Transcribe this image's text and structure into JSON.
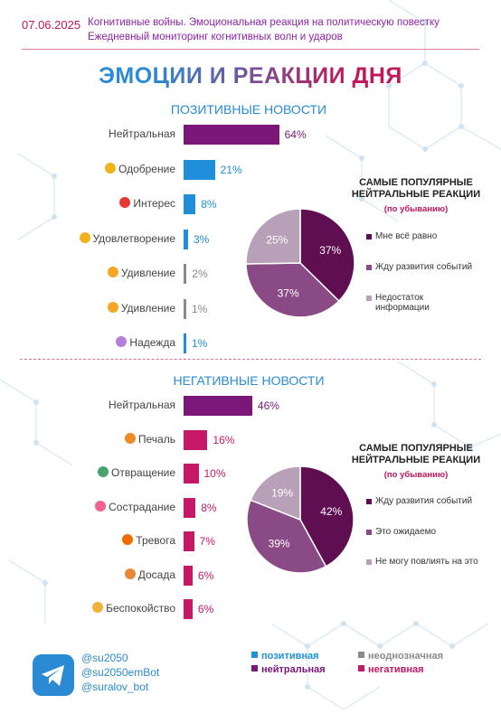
{
  "header": {
    "date": "07.06.2025",
    "line1": "Когнитивные войны. Эмоциональная реакция на политическую повестку",
    "line2": "Ежедневный мониторинг когнитивных волн и ударов"
  },
  "main_title": "ЭМОЦИИ И РЕАКЦИИ ДНЯ",
  "colors": {
    "positive": "#1f8fd9",
    "neutral": "#7b1777",
    "ambiguous": "#8a8a8a",
    "negative": "#c71767",
    "pie_dark": "#5e0e51",
    "pie_mid": "#8a4a85",
    "pie_light": "#b7a0b8"
  },
  "chart_data": [
    {
      "type": "bar",
      "title": "ПОЗИТИВНЫЕ НОВОСТИ",
      "categories": [
        "Нейтральная",
        "Одобрение",
        "Интерес",
        "Удовлетворение",
        "Удивление",
        "Удивление",
        "Надежда"
      ],
      "values": [
        64,
        21,
        8,
        3,
        2,
        1,
        1
      ],
      "value_labels": [
        "64%",
        "21%",
        "8%",
        "3%",
        "2%",
        "1%",
        "1%"
      ],
      "category_types": [
        "neutral",
        "positive",
        "positive",
        "positive",
        "ambiguous",
        "ambiguous",
        "positive"
      ],
      "icons": [
        "",
        "smile-icon",
        "question-icon",
        "smile-icon",
        "surprise-icon",
        "surprise-icon",
        "hope-icon"
      ]
    },
    {
      "type": "pie",
      "title": "САМЫЕ ПОПУЛЯРНЫЕ НЕЙТРАЛЬНЫЕ РЕАКЦИИ",
      "subtitle": "(по убыванию)",
      "slices": [
        {
          "label": "Мне всё равно",
          "value": 37,
          "value_label": "37%"
        },
        {
          "label": "Жду развития событий",
          "value": 37,
          "value_label": "37%"
        },
        {
          "label": "Недостаток информации",
          "value": 25,
          "value_label": "25%"
        }
      ]
    },
    {
      "type": "bar",
      "title": "НЕГАТИВНЫЕ НОВОСТИ",
      "categories": [
        "Нейтральная",
        "Печаль",
        "Отвращение",
        "Сострадание",
        "Тревога",
        "Досада",
        "Беспокойство"
      ],
      "values": [
        46,
        16,
        10,
        8,
        7,
        6,
        6
      ],
      "value_labels": [
        "46%",
        "16%",
        "10%",
        "8%",
        "7%",
        "6%",
        "6%"
      ],
      "category_types": [
        "neutral",
        "negative",
        "negative",
        "negative",
        "negative",
        "negative",
        "negative"
      ],
      "icons": [
        "",
        "sad-icon",
        "disgust-icon",
        "compassion-icon",
        "anxiety-icon",
        "annoyance-icon",
        "worry-icon"
      ]
    },
    {
      "type": "pie",
      "title": "САМЫЕ ПОПУЛЯРНЫЕ НЕЙТРАЛЬНЫЕ РЕАКЦИИ",
      "subtitle": "(по убыванию)",
      "slices": [
        {
          "label": "Жду развития событий",
          "value": 42,
          "value_label": "42%"
        },
        {
          "label": "Это ожидаемо",
          "value": 39,
          "value_label": "39%"
        },
        {
          "label": "Не могу повлиять на это",
          "value": 19,
          "value_label": "19%"
        }
      ]
    }
  ],
  "footer": {
    "handles": [
      "@su2050",
      "@su2050emBot",
      "@suralov_bot"
    ],
    "legend": [
      {
        "label": "позитивная",
        "type": "positive"
      },
      {
        "label": "неоднозначная",
        "type": "ambiguous"
      },
      {
        "label": "нейтральная",
        "type": "neutral"
      },
      {
        "label": "негативная",
        "type": "negative"
      }
    ]
  }
}
